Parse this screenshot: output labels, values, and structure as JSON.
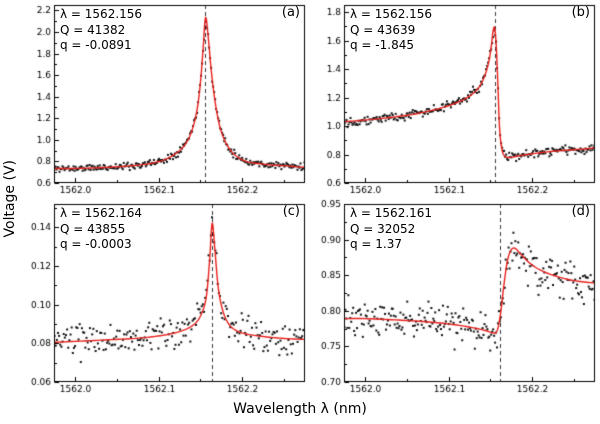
{
  "figure": {
    "ylabel": "Voltage (V)",
    "xlabel": "Wavelength λ (nm)",
    "colors": {
      "fit": "#e8211d",
      "points": "#141414",
      "dashed": "#3a3a3a",
      "frame": "#000000"
    }
  },
  "chart_data": [
    {
      "type": "scatter",
      "panel_label": "(a)",
      "annotation": {
        "lambda": "λ = 1562.156",
        "Q": "Q = 41382",
        "q": "q = -0.0891"
      },
      "xlim": [
        1561.975,
        1562.275
      ],
      "ylim": [
        0.6,
        2.25
      ],
      "xticks": [
        1562.0,
        1562.1,
        1562.2
      ],
      "yticks": [
        0.6,
        0.8,
        1.0,
        1.2,
        1.4,
        1.6,
        1.8,
        2.0,
        2.2
      ],
      "xtick_decimals": 1,
      "ytick_decimals": 1,
      "resonance_x": 1562.156,
      "noise": 0.022,
      "n_points": 250,
      "seed": 11,
      "fit": [
        [
          1561.975,
          0.735
        ],
        [
          1562.0,
          0.735
        ],
        [
          1562.03,
          0.742
        ],
        [
          1562.06,
          0.755
        ],
        [
          1562.085,
          0.775
        ],
        [
          1562.105,
          0.81
        ],
        [
          1562.12,
          0.87
        ],
        [
          1562.132,
          0.96
        ],
        [
          1562.14,
          1.09
        ],
        [
          1562.146,
          1.28
        ],
        [
          1562.15,
          1.53
        ],
        [
          1562.153,
          1.82
        ],
        [
          1562.156,
          2.13
        ],
        [
          1562.159,
          1.98
        ],
        [
          1562.163,
          1.64
        ],
        [
          1562.168,
          1.33
        ],
        [
          1562.174,
          1.1
        ],
        [
          1562.182,
          0.95
        ],
        [
          1562.192,
          0.855
        ],
        [
          1562.205,
          0.8
        ],
        [
          1562.225,
          0.775
        ],
        [
          1562.25,
          0.76
        ],
        [
          1562.275,
          0.745
        ]
      ]
    },
    {
      "type": "scatter",
      "panel_label": "(b)",
      "annotation": {
        "lambda": "λ = 1562.156",
        "Q": "Q = 43639",
        "q": "q = -1.845"
      },
      "xlim": [
        1561.975,
        1562.275
      ],
      "ylim": [
        0.6,
        1.85
      ],
      "xticks": [
        1562.0,
        1562.1,
        1562.2
      ],
      "yticks": [
        0.6,
        0.8,
        1.0,
        1.2,
        1.4,
        1.6,
        1.8
      ],
      "xtick_decimals": 1,
      "ytick_decimals": 1,
      "resonance_x": 1562.156,
      "noise": 0.02,
      "n_points": 250,
      "seed": 22,
      "fit": [
        [
          1561.975,
          1.03
        ],
        [
          1562.0,
          1.042
        ],
        [
          1562.03,
          1.06
        ],
        [
          1562.06,
          1.085
        ],
        [
          1562.09,
          1.125
        ],
        [
          1562.11,
          1.165
        ],
        [
          1562.125,
          1.21
        ],
        [
          1562.136,
          1.27
        ],
        [
          1562.143,
          1.35
        ],
        [
          1562.148,
          1.45
        ],
        [
          1562.151,
          1.56
        ],
        [
          1562.153,
          1.66
        ],
        [
          1562.155,
          1.69
        ],
        [
          1562.157,
          1.56
        ],
        [
          1562.159,
          1.28
        ],
        [
          1562.161,
          0.98
        ],
        [
          1562.164,
          0.83
        ],
        [
          1562.168,
          0.785
        ],
        [
          1562.175,
          0.78
        ],
        [
          1562.185,
          0.792
        ],
        [
          1562.2,
          0.805
        ],
        [
          1562.22,
          0.82
        ],
        [
          1562.245,
          0.832
        ],
        [
          1562.275,
          0.845
        ]
      ]
    },
    {
      "type": "scatter",
      "panel_label": "(c)",
      "annotation": {
        "lambda": "λ = 1562.164",
        "Q": "Q = 43855",
        "q": "q = -0.0003"
      },
      "xlim": [
        1561.975,
        1562.275
      ],
      "ylim": [
        0.06,
        0.152
      ],
      "xticks": [
        1562.0,
        1562.1,
        1562.2
      ],
      "yticks": [
        0.06,
        0.08,
        0.1,
        0.12,
        0.14
      ],
      "xtick_decimals": 1,
      "ytick_decimals": 2,
      "resonance_x": 1562.164,
      "noise": 0.005,
      "n_points": 220,
      "seed": 33,
      "fit": [
        [
          1561.975,
          0.0805
        ],
        [
          1562.0,
          0.081
        ],
        [
          1562.04,
          0.0818
        ],
        [
          1562.08,
          0.0828
        ],
        [
          1562.11,
          0.0845
        ],
        [
          1562.13,
          0.0868
        ],
        [
          1562.143,
          0.09
        ],
        [
          1562.151,
          0.095
        ],
        [
          1562.157,
          0.104
        ],
        [
          1562.161,
          0.123
        ],
        [
          1562.164,
          0.142
        ],
        [
          1562.167,
          0.13
        ],
        [
          1562.171,
          0.11
        ],
        [
          1562.176,
          0.098
        ],
        [
          1562.183,
          0.0905
        ],
        [
          1562.192,
          0.0868
        ],
        [
          1562.205,
          0.0848
        ],
        [
          1562.225,
          0.0835
        ],
        [
          1562.25,
          0.0825
        ],
        [
          1562.275,
          0.082
        ]
      ]
    },
    {
      "type": "scatter",
      "panel_label": "(d)",
      "annotation": {
        "lambda": "λ = 1562.161",
        "Q": "Q = 32052",
        "q": "q = 1.37"
      },
      "xlim": [
        1561.975,
        1562.275
      ],
      "ylim": [
        0.7,
        0.95
      ],
      "xticks": [
        1562.0,
        1562.1,
        1562.2
      ],
      "yticks": [
        0.7,
        0.75,
        0.8,
        0.85,
        0.9,
        0.95
      ],
      "xtick_decimals": 1,
      "ytick_decimals": 2,
      "resonance_x": 1562.161,
      "noise": 0.018,
      "n_points": 260,
      "seed": 44,
      "fit": [
        [
          1561.975,
          0.789
        ],
        [
          1562.0,
          0.789
        ],
        [
          1562.04,
          0.787
        ],
        [
          1562.08,
          0.784
        ],
        [
          1562.11,
          0.78
        ],
        [
          1562.13,
          0.776
        ],
        [
          1562.145,
          0.772
        ],
        [
          1562.153,
          0.769
        ],
        [
          1562.158,
          0.772
        ],
        [
          1562.162,
          0.795
        ],
        [
          1562.166,
          0.835
        ],
        [
          1562.17,
          0.868
        ],
        [
          1562.174,
          0.884
        ],
        [
          1562.179,
          0.888
        ],
        [
          1562.186,
          0.88
        ],
        [
          1562.196,
          0.868
        ],
        [
          1562.21,
          0.857
        ],
        [
          1562.23,
          0.848
        ],
        [
          1562.252,
          0.842
        ],
        [
          1562.275,
          0.839
        ]
      ]
    }
  ]
}
